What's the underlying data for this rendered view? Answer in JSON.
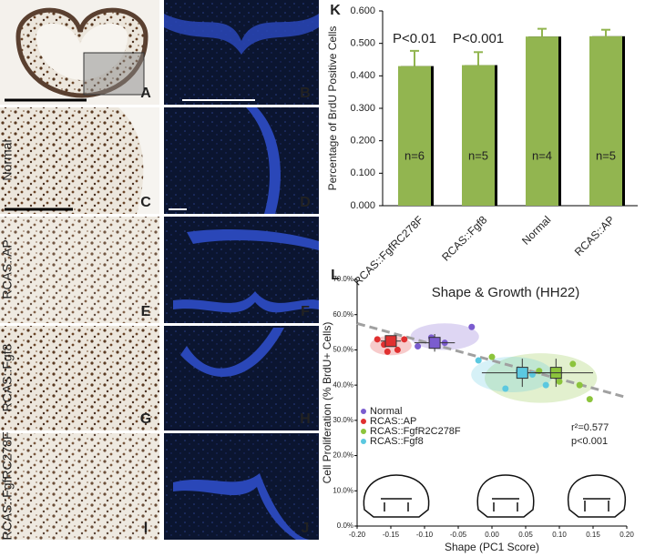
{
  "panels": {
    "letters": [
      "A",
      "B",
      "C",
      "D",
      "E",
      "F",
      "G",
      "H",
      "I",
      "J",
      "K",
      "L"
    ],
    "row_labels": [
      "Normal",
      "RCAS::AP",
      "RCAS::Fgf8",
      "RCAS::FgfRC278F"
    ]
  },
  "chart_data": [
    {
      "type": "bar",
      "ylabel": "Percentage of BrdU Positive Cells",
      "categories": [
        "RCAS::FgfRC278F",
        "RCAS::Fgf8",
        "Normal",
        "RCAS::AP"
      ],
      "values": [
        0.43,
        0.433,
        0.521,
        0.522
      ],
      "errors": [
        0.047,
        0.04,
        0.024,
        0.02
      ],
      "p_labels": [
        "P<0.01",
        "P<0.001",
        null,
        null
      ],
      "n_labels": [
        "n=6",
        "n=5",
        "n=4",
        "n=5"
      ],
      "color": "#92b550",
      "ylim": [
        0,
        0.6
      ],
      "yticks": [
        {
          "value": 0,
          "label": "0.000"
        },
        {
          "value": 0.1,
          "label": "0.100"
        },
        {
          "value": 0.2,
          "label": "0.200"
        },
        {
          "value": 0.3,
          "label": "0.300"
        },
        {
          "value": 0.4,
          "label": "0.400"
        },
        {
          "value": 0.5,
          "label": "0.500"
        },
        {
          "value": 0.6,
          "label": "0.600"
        }
      ]
    },
    {
      "type": "scatter",
      "title": "Shape & Growth (HH22)",
      "xlabel": "Shape (PC1 Score)",
      "ylabel": "Cell Proliferation (% BrdU+ Cells)",
      "annotations": [
        "r²=0.577",
        "p<0.001"
      ],
      "series": [
        {
          "name": "Normal",
          "color": "#7b5ccf",
          "x": [
            -0.11,
            -0.09,
            -0.07,
            -0.03
          ],
          "y": [
            51,
            53.5,
            52,
            56.5
          ],
          "mean": {
            "x": -0.085,
            "y": 52,
            "x_error": 0.03,
            "y_error": 2.5
          }
        },
        {
          "name": "RCAS::AP",
          "color": "#e03030",
          "x": [
            -0.17,
            -0.16,
            -0.155,
            -0.14,
            -0.13
          ],
          "y": [
            53,
            51.5,
            49.5,
            50,
            53
          ],
          "mean": {
            "x": -0.15,
            "y": 52.5,
            "x_error": 0.015,
            "y_error": 1.5
          }
        },
        {
          "name": "RCAS::FgfR2C278F",
          "color": "#8cc43c",
          "x": [
            0.0,
            0.07,
            0.1,
            0.12,
            0.13,
            0.145
          ],
          "y": [
            48,
            44,
            41,
            46,
            40,
            36
          ],
          "mean": {
            "x": 0.095,
            "y": 43.5,
            "x_error": 0.055,
            "y_error": 4
          }
        },
        {
          "name": "RCAS::Fgf8",
          "color": "#5bc8e0",
          "x": [
            -0.02,
            0.02,
            0.04,
            0.06,
            0.08
          ],
          "y": [
            47,
            39,
            44,
            43,
            40
          ],
          "mean": {
            "x": 0.045,
            "y": 43.5,
            "x_error": 0.06,
            "y_error": 4
          }
        }
      ],
      "trend_line": {
        "x": [
          -0.2,
          0.2
        ],
        "y": [
          57.5,
          36.5
        ]
      },
      "xlim": [
        -0.2,
        0.2
      ],
      "xticks": [
        {
          "value": -0.2,
          "label": "-0.20"
        },
        {
          "value": -0.15,
          "label": "-0.15"
        },
        {
          "value": -0.1,
          "label": "-0.10"
        },
        {
          "value": -0.05,
          "label": "-0.05"
        },
        {
          "value": 0,
          "label": "0.00"
        },
        {
          "value": 0.05,
          "label": "0.05"
        },
        {
          "value": 0.1,
          "label": "0.10"
        },
        {
          "value": 0.15,
          "label": "0.15"
        },
        {
          "value": 0.2,
          "label": "0.20"
        }
      ],
      "ylim": [
        0,
        70
      ],
      "yticks": [
        {
          "value": 0,
          "label": "0.0%"
        },
        {
          "value": 10,
          "label": "10.0%"
        },
        {
          "value": 20,
          "label": "20.0%"
        },
        {
          "value": 30,
          "label": "30.0%"
        },
        {
          "value": 40,
          "label": "40.0%"
        },
        {
          "value": 50,
          "label": "50.0%"
        },
        {
          "value": 60,
          "label": "60.0%"
        },
        {
          "value": 70,
          "label": "70.0%"
        }
      ]
    }
  ]
}
